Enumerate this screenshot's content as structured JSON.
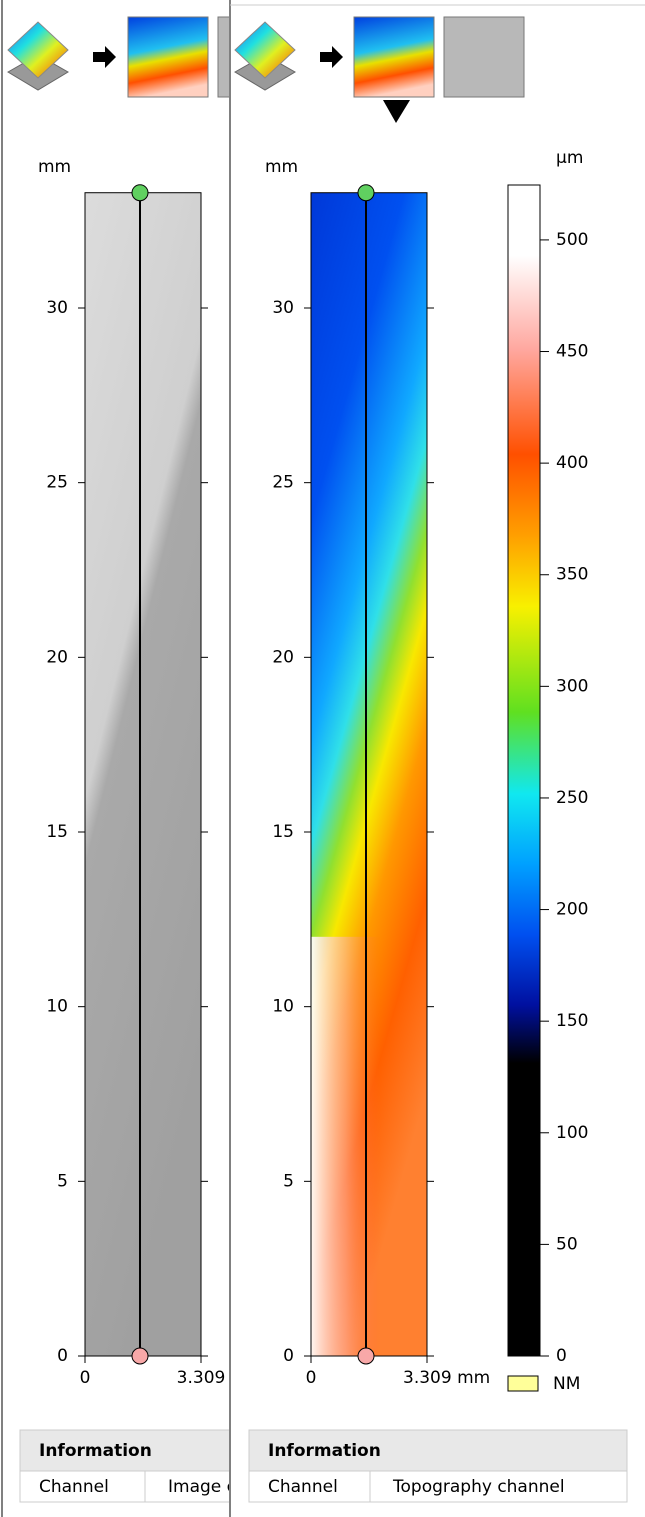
{
  "panels": [
    {
      "y_unit": "mm",
      "ylim": [
        0,
        33.3
      ],
      "xlim": [
        0,
        3.309
      ],
      "yticks": [
        0,
        5,
        10,
        15,
        20,
        25,
        30
      ],
      "xticks": [
        0,
        3.309
      ],
      "info_title": "Information",
      "channel_label": "Channel",
      "channel_value": "Image c"
    },
    {
      "y_unit": "mm",
      "ylim": [
        0,
        33.3
      ],
      "xlim": [
        0,
        3.309
      ],
      "yticks": [
        0,
        5,
        10,
        15,
        20,
        25,
        30
      ],
      "xticks": [
        0,
        {
          "value": 3.309,
          "label": "3.309 mm"
        }
      ],
      "info_title": "Information",
      "channel_label": "Channel",
      "channel_value": "Topography channel"
    }
  ],
  "colorbar": {
    "unit": "µm",
    "lim": [
      0,
      524.6
    ],
    "ticks": [
      0,
      50,
      100,
      150,
      200,
      250,
      300,
      350,
      400,
      450,
      500
    ],
    "nodata_label": "NM"
  }
}
